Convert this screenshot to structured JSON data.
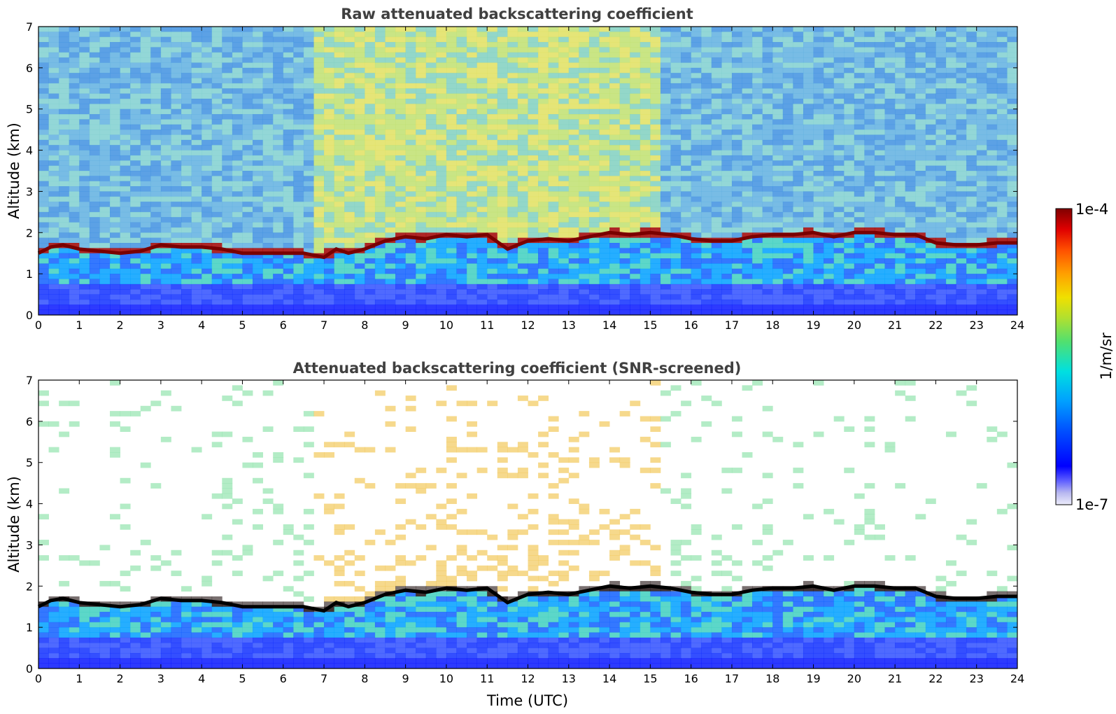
{
  "chart_data": [
    {
      "type": "heatmap",
      "title": "Raw attenuated backscattering coefficient",
      "xlabel": "",
      "ylabel": "Altitude (km)",
      "xlim": [
        0,
        24
      ],
      "ylim": [
        0,
        7
      ],
      "xticks": [
        "0",
        "1",
        "2",
        "3",
        "4",
        "5",
        "6",
        "7",
        "8",
        "9",
        "10",
        "11",
        "12",
        "13",
        "14",
        "15",
        "16",
        "17",
        "18",
        "19",
        "20",
        "21",
        "22",
        "23",
        "24"
      ],
      "yticks": [
        "0",
        "1",
        "2",
        "3",
        "4",
        "5",
        "6",
        "7"
      ],
      "layer_top_km": {
        "time_utc": [
          0,
          0.3,
          0.6,
          1,
          1.5,
          2,
          2.5,
          3,
          3.5,
          4,
          4.5,
          5,
          5.5,
          6,
          6.5,
          7,
          7.3,
          7.6,
          8,
          8.5,
          9,
          9.5,
          10,
          10.5,
          11,
          11.5,
          12,
          12.5,
          13,
          13.5,
          14,
          14.5,
          15,
          15.5,
          16,
          16.5,
          17,
          17.5,
          18,
          18.5,
          19,
          19.5,
          20,
          20.5,
          21,
          21.5,
          22,
          22.5,
          23,
          23.5,
          24
        ],
        "altitude_km": [
          1.5,
          1.65,
          1.7,
          1.6,
          1.55,
          1.5,
          1.55,
          1.7,
          1.65,
          1.65,
          1.6,
          1.5,
          1.5,
          1.5,
          1.5,
          1.4,
          1.6,
          1.5,
          1.6,
          1.8,
          1.9,
          1.85,
          1.95,
          1.9,
          1.95,
          1.6,
          1.8,
          1.85,
          1.8,
          1.9,
          2.0,
          1.95,
          2.0,
          1.95,
          1.85,
          1.8,
          1.8,
          1.9,
          1.95,
          1.95,
          2.0,
          1.9,
          2.0,
          2.0,
          1.95,
          1.95,
          1.75,
          1.7,
          1.7,
          1.75,
          1.75
        ]
      },
      "grid": false
    },
    {
      "type": "heatmap",
      "title": "Attenuated backscattering coefficient (SNR-screened)",
      "xlabel": "Time (UTC)",
      "ylabel": "Altitude (km)",
      "xlim": [
        0,
        24
      ],
      "ylim": [
        0,
        7
      ],
      "xticks": [
        "0",
        "1",
        "2",
        "3",
        "4",
        "5",
        "6",
        "7",
        "8",
        "9",
        "10",
        "11",
        "12",
        "13",
        "14",
        "15",
        "16",
        "17",
        "18",
        "19",
        "20",
        "21",
        "22",
        "23",
        "24"
      ],
      "yticks": [
        "0",
        "1",
        "2",
        "3",
        "4",
        "5",
        "6",
        "7"
      ],
      "grid": false
    }
  ],
  "colorbar": {
    "label": "1/m/sr",
    "max_label": "1e-4",
    "min_label": "1e-7",
    "scale": "log",
    "range": [
      1e-07,
      0.0001
    ],
    "colors": [
      "#e8e8f8",
      "#b8b8f0",
      "#8080ff",
      "#0000ff",
      "#0040ff",
      "#0080ff",
      "#00c0ff",
      "#00e0e0",
      "#40e080",
      "#a0e040",
      "#e0e000",
      "#ffc000",
      "#ff8000",
      "#ff4000",
      "#e00000",
      "#800000"
    ]
  }
}
